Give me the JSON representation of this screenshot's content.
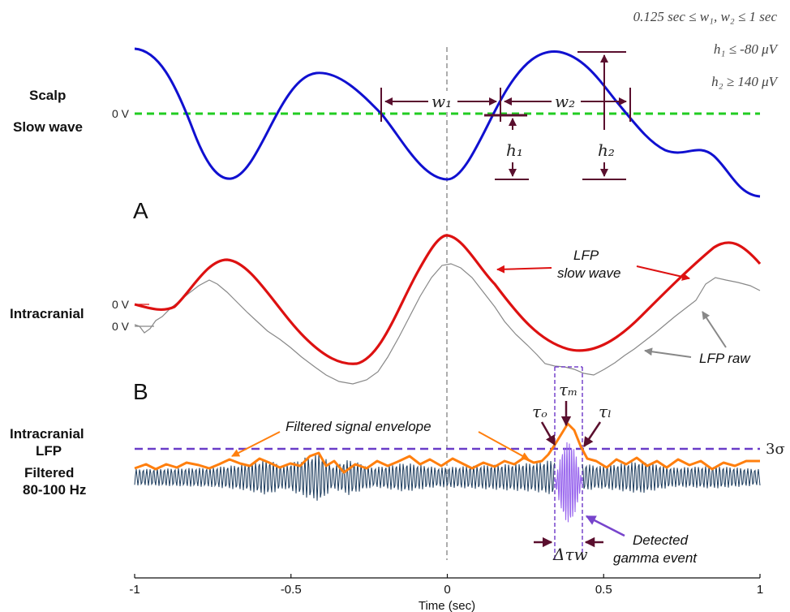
{
  "criteria": {
    "w": "0.125 sec ≤ w₁, w₂ ≤ 1 sec",
    "h1": "h₁ ≤ -80 μV",
    "h2": "h₂ ≥  140 μV"
  },
  "rows": {
    "scalp_title": "Scalp",
    "scalp_subtitle": "Slow wave",
    "intracranial": "Intracranial",
    "filtered_title_1": "Intracranial",
    "filtered_title_2": "LFP",
    "filtered_sub_1": "Filtered",
    "filtered_sub_2": "80-100 Hz"
  },
  "panels": {
    "a": "A",
    "b": "B"
  },
  "zero_labels": {
    "scalp": "0 V",
    "lfp_slow": "0 V",
    "lfp_raw": "0 V"
  },
  "annotations": {
    "w1": "w₁",
    "w2": "w₂",
    "h1": "h₁",
    "h2": "h₂",
    "lfp_slow_1": "LFP",
    "lfp_slow_2": "slow wave",
    "lfp_raw": "LFP raw",
    "envelope": "Filtered signal envelope",
    "tau_o": "τₒ",
    "tau_m": "τₘ",
    "tau_l": "τₗ",
    "sigma": "3σ",
    "delta_tau": "Δτw",
    "detected_1": "Detected",
    "detected_2": "gamma event"
  },
  "x_axis": {
    "label": "Time (sec)",
    "ticks": [
      "-1",
      "-0.5",
      "0",
      "0.5",
      "1"
    ],
    "range": [
      -1,
      1
    ]
  },
  "colors": {
    "scalp_wave": "#1010d0",
    "threshold_green": "#22cc22",
    "lfp_slow": "#dd1111",
    "lfp_raw": "#888888",
    "envelope": "#ff7f0e",
    "gamma_signal": "#1a3a5c",
    "sigma_line": "#6a3dc8",
    "event_purple": "#8855dd",
    "dark_arrow": "#5a0f2e",
    "red_arrow": "#dd1111",
    "gray_arrow": "#888888",
    "orange_arrow": "#ff7f0e",
    "purple_arrow": "#7744cc"
  }
}
